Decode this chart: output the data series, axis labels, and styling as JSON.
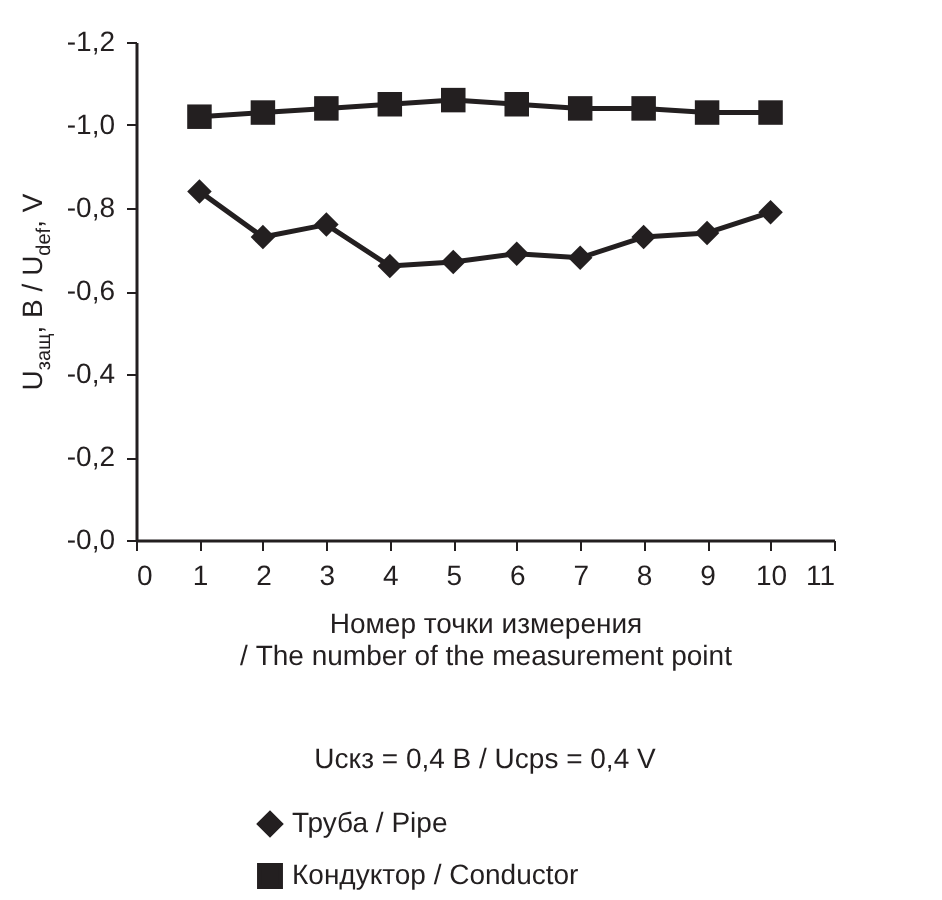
{
  "chart_data": {
    "type": "line",
    "xlabel": "Номер точки измерения\n/ The number of the measurement point",
    "ylabel": "U$_{защ}$, В / U$_{def}$, V",
    "annotations": [
      "Uскз = 0,4 В / Ucps = 0,4 V"
    ],
    "x": [
      1,
      2,
      3,
      4,
      5,
      6,
      7,
      8,
      9,
      10
    ],
    "series": [
      {
        "name": "Труба / Pipe",
        "color": "#231f20",
        "marker": "diamond",
        "values": [
          -0.84,
          -0.73,
          -0.76,
          -0.66,
          -0.67,
          -0.69,
          -0.68,
          -0.73,
          -0.74,
          -0.79
        ]
      },
      {
        "name": "Кондуктор / Conductor",
        "color": "#231f20",
        "marker": "square",
        "values": [
          -1.02,
          -1.03,
          -1.04,
          -1.05,
          -1.06,
          -1.05,
          -1.04,
          -1.04,
          -1.03,
          -1.03
        ]
      }
    ],
    "xlim": [
      0,
      11
    ],
    "xticks": [
      0,
      1,
      2,
      3,
      4,
      5,
      6,
      7,
      8,
      9,
      10,
      11
    ],
    "ylim": [
      0,
      -1.2
    ],
    "yticks": [
      {
        "value": 0,
        "label": "-0,0"
      },
      {
        "value": -0.2,
        "label": "-0,2"
      },
      {
        "value": -0.4,
        "label": "-0,4"
      },
      {
        "value": -0.6,
        "label": "-0,6"
      },
      {
        "value": -0.8,
        "label": "-0,8"
      },
      {
        "value": -1,
        "label": "-1,0"
      },
      {
        "value": -1.2,
        "label": "-1,2"
      }
    ],
    "grid": false,
    "legend": "bottom",
    "line_style": "solid"
  }
}
